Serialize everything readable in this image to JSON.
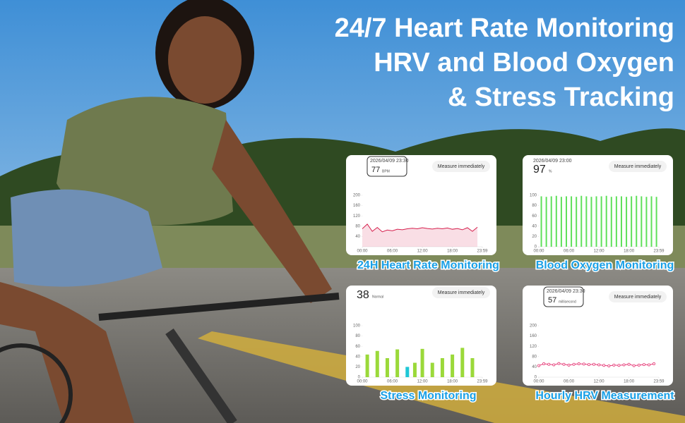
{
  "headline": [
    "24/7 Heart Rate Monitoring",
    "HRV and Blood Oxygen",
    "& Stress Tracking"
  ],
  "chart_data": [
    {
      "type": "line",
      "title": "24H Heart Rate Monitoring",
      "timestamp": "2026/04/09 23:30",
      "reading": "77",
      "unit": "BPM",
      "button": "Measure immediately",
      "x": [
        0,
        1,
        2,
        3,
        4,
        5,
        6,
        7,
        8,
        9,
        10,
        11,
        12,
        13,
        14,
        15,
        16,
        17,
        18,
        19,
        20,
        21,
        22,
        23
      ],
      "series": [
        {
          "name": "Heart rate",
          "color": "#d6204e",
          "values": [
            70,
            88,
            60,
            75,
            58,
            65,
            62,
            68,
            66,
            70,
            72,
            70,
            74,
            71,
            69,
            72,
            70,
            73,
            68,
            71,
            66,
            74,
            60,
            76
          ]
        }
      ],
      "area": true,
      "xlim": [
        0,
        23.98
      ],
      "ylim": [
        0,
        200
      ],
      "yticks": [
        40,
        80,
        120,
        160,
        200
      ],
      "xticks": [
        {
          "value": 0,
          "label": "00:00"
        },
        {
          "value": 6,
          "label": "06:00"
        },
        {
          "value": 12,
          "label": "12:00"
        },
        {
          "value": 18,
          "label": "18:00"
        },
        {
          "value": 23.98,
          "label": "23:59"
        }
      ]
    },
    {
      "type": "bar",
      "title": "Blood Oxygen Monitoring",
      "timestamp": "2026/04/09 23:00",
      "reading": "97",
      "unit": "%",
      "button": "Measure immediately",
      "x": [
        0.5,
        1.5,
        2.5,
        3.5,
        4.5,
        5.5,
        6.5,
        7.5,
        8.5,
        9.5,
        10.5,
        11.5,
        12.5,
        13.5,
        14.5,
        15.5,
        16.5,
        17.5,
        18.5,
        19.5,
        20.5,
        21.5,
        22.5,
        23.5
      ],
      "values": [
        98,
        97,
        98,
        99,
        97,
        98,
        98,
        97,
        99,
        98,
        97,
        98,
        98,
        99,
        97,
        98,
        98,
        97,
        98,
        99,
        98,
        97,
        98,
        97
      ],
      "color": "#5fe05a",
      "xlim": [
        0,
        23.98
      ],
      "ylim": [
        0,
        100
      ],
      "yticks": [
        0,
        20,
        40,
        60,
        80,
        100
      ],
      "xticks": [
        {
          "value": 0,
          "label": "00:00"
        },
        {
          "value": 6,
          "label": "06:00"
        },
        {
          "value": 12,
          "label": "12:00"
        },
        {
          "value": 18,
          "label": "18:00"
        },
        {
          "value": 23.98,
          "label": "23:59"
        }
      ]
    },
    {
      "type": "bar",
      "title": "Stress Monitoring",
      "reading": "38",
      "unit": "Normal",
      "button": "Measure immediately",
      "x": [
        1,
        3,
        5,
        7,
        9,
        10.5,
        12,
        14,
        16,
        18,
        20,
        22
      ],
      "values": [
        44,
        51,
        37,
        54,
        20,
        28,
        55,
        28,
        37,
        44,
        57,
        37
      ],
      "colors": [
        "#9bd93a",
        "#9bd93a",
        "#9bd93a",
        "#9bd93a",
        "#1fc7d6",
        "#9bd93a",
        "#9bd93a",
        "#9bd93a",
        "#9bd93a",
        "#9bd93a",
        "#9bd93a",
        "#9bd93a"
      ],
      "xlim": [
        0,
        23.98
      ],
      "ylim": [
        0,
        100
      ],
      "yticks": [
        0,
        20,
        40,
        60,
        80,
        100
      ],
      "xticks": [
        {
          "value": 0,
          "label": "00:00"
        },
        {
          "value": 6,
          "label": "06:00"
        },
        {
          "value": 12,
          "label": "12:00"
        },
        {
          "value": 18,
          "label": "18:00"
        },
        {
          "value": 23.98,
          "label": "23:59"
        }
      ]
    },
    {
      "type": "line",
      "title": "Hourly HRV Measurement",
      "timestamp": "2026/04/09 23:30",
      "reading": "57",
      "unit": "millisecond",
      "button": "Measure immediately",
      "x": [
        0,
        1,
        2,
        3,
        4,
        5,
        6,
        7,
        8,
        9,
        10,
        11,
        12,
        13,
        14,
        15,
        16,
        17,
        18,
        19,
        20,
        21,
        22,
        23
      ],
      "series": [
        {
          "name": "HRV",
          "color": "#e63a77",
          "values": [
            45,
            52,
            50,
            48,
            53,
            50,
            47,
            50,
            52,
            51,
            49,
            50,
            48,
            46,
            44,
            47,
            46,
            48,
            50,
            45,
            47,
            49,
            48,
            52
          ]
        }
      ],
      "markers": true,
      "xlim": [
        0,
        23.98
      ],
      "ylim": [
        0,
        200
      ],
      "yticks": [
        0,
        40,
        80,
        120,
        160,
        200
      ],
      "xticks": [
        {
          "value": 0,
          "label": "00:00"
        },
        {
          "value": 6,
          "label": "06:00"
        },
        {
          "value": 12,
          "label": "12:00"
        },
        {
          "value": 18,
          "label": "18:00"
        },
        {
          "value": 23.98,
          "label": "23:59"
        }
      ]
    }
  ]
}
